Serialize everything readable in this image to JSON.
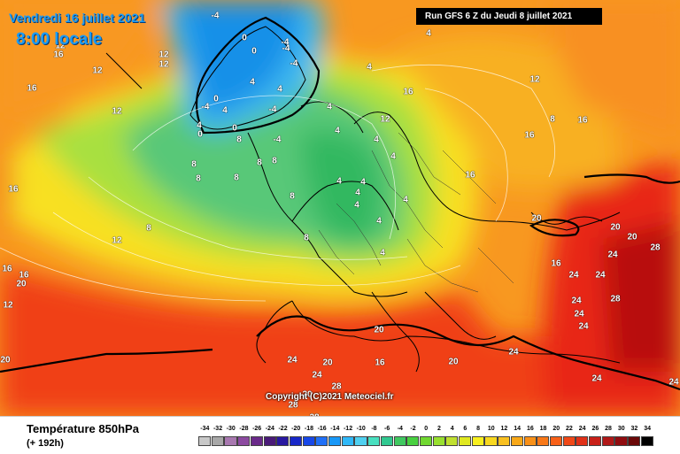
{
  "header": {
    "date_line": "Vendredi 16 juillet 2021",
    "time_line": "8:00 locale",
    "run_line": "Run GFS 6 Z du Jeudi 8 juillet 2021"
  },
  "map": {
    "copyright": "Copyright (C)2021 Meteociel.fr",
    "values": [
      "-4",
      "0",
      "-4",
      "-4",
      "0",
      "16",
      "12",
      "12",
      "-4",
      "4",
      "0",
      "4",
      "4",
      "0",
      "12",
      "4",
      "-4",
      "0",
      "-4",
      "4",
      "8",
      "16",
      "12",
      "4",
      "4",
      "4",
      "-4",
      "16",
      "12",
      "4",
      "4",
      "8",
      "8",
      "4",
      "12",
      "8",
      "8",
      "4",
      "8",
      "8",
      "16",
      "16",
      "4",
      "8",
      "4",
      "12",
      "8",
      "4",
      "16",
      "20",
      "20",
      "20",
      "28",
      "16",
      "16",
      "4",
      "16",
      "4",
      "24",
      "16",
      "20",
      "24",
      "12",
      "8",
      "12",
      "28",
      "24",
      "24",
      "20",
      "20",
      "24",
      "24",
      "24",
      "28",
      "20",
      "16",
      "24",
      "24",
      "24",
      "20",
      "28",
      "28",
      "24",
      "20"
    ],
    "colors": {
      "very_cold": "#1890e8",
      "cold": "#3cb8f0",
      "cool": "#58c878",
      "mild": "#a8e040",
      "warm": "#f8e020",
      "hot": "#f89820",
      "very_hot": "#f04018",
      "extreme": "#c01010"
    }
  },
  "legend": {
    "title": "Température 850hPa",
    "subtitle": "(+ 192h)",
    "ticks": [
      "-34",
      "-32",
      "-30",
      "-28",
      "-26",
      "-24",
      "-22",
      "-20",
      "-18",
      "-16",
      "-14",
      "-12",
      "-10",
      "-8",
      "-6",
      "-4",
      "-2",
      "0",
      "2",
      "4",
      "6",
      "8",
      "10",
      "12",
      "14",
      "16",
      "18",
      "20",
      "22",
      "24",
      "26",
      "28",
      "30",
      "32",
      "34"
    ],
    "colors": [
      "#c8c8c8",
      "#a8a8a8",
      "#a878b0",
      "#8c4aa0",
      "#6a2a8a",
      "#4a1a78",
      "#2818a0",
      "#1828c8",
      "#1848e8",
      "#2070f8",
      "#1898f8",
      "#30b8f8",
      "#50d0f0",
      "#48e0c0",
      "#30c890",
      "#40c860",
      "#48d040",
      "#70d830",
      "#98e030",
      "#c0e030",
      "#e0e820",
      "#f8f020",
      "#f8d820",
      "#f8c020",
      "#f8a818",
      "#f89018",
      "#f87818",
      "#f86018",
      "#f04818",
      "#e03018",
      "#c82018",
      "#b01818",
      "#900c10",
      "#6a0808",
      "#000000"
    ]
  }
}
